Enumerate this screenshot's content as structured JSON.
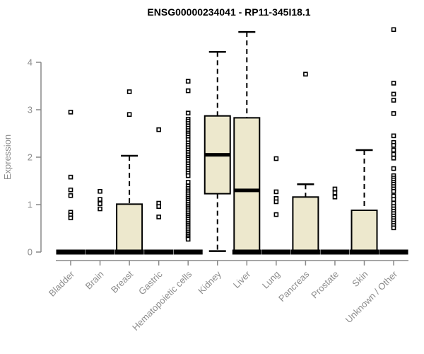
{
  "title": "ENSG00000234041 - RP11-345I18.1",
  "colors": {
    "box_fill": "#ede8cd",
    "box_stroke": "#000000",
    "median": "#000000",
    "axis_line": "#888888",
    "axis_text": "#8c8c8c",
    "title_text": "#000000",
    "background": "#ffffff"
  },
  "chart_data": {
    "type": "boxplot",
    "title": "ENSG00000234041 - RP11-345I18.1",
    "xlabel": "",
    "ylabel": "Expression",
    "ylim": [
      0,
      4.8
    ],
    "yticks": [
      0,
      1,
      2,
      3,
      4
    ],
    "grid": false,
    "legend": "none",
    "categories": [
      "Bladder",
      "Brain",
      "Breast",
      "Gastric",
      "Hematopoietic cells",
      "Kidney",
      "Liver",
      "Lung",
      "Pancreas",
      "Prostate",
      "Skin",
      "Unknown / Other"
    ],
    "series": [
      {
        "name": "Bladder",
        "q1": 0,
        "median": 0,
        "q3": 0,
        "whisker_low": 0,
        "whisker_high": 0,
        "zero_bar": true,
        "outliers": [
          2.95,
          1.58,
          1.31,
          1.19,
          0.84,
          0.78,
          0.72
        ]
      },
      {
        "name": "Brain",
        "q1": 0,
        "median": 0,
        "q3": 0,
        "whisker_low": 0,
        "whisker_high": 0,
        "zero_bar": true,
        "outliers": [
          1.28,
          1.11,
          1.02,
          0.91
        ]
      },
      {
        "name": "Breast",
        "q1": 0,
        "median": 0,
        "q3": 1.01,
        "whisker_low": 0,
        "whisker_high": 2.03,
        "zero_bar": true,
        "outliers": [
          3.38,
          2.9
        ]
      },
      {
        "name": "Gastric",
        "q1": 0,
        "median": 0,
        "q3": 0,
        "whisker_low": 0,
        "whisker_high": 0,
        "zero_bar": true,
        "outliers": [
          2.58,
          1.03,
          0.96,
          0.74
        ]
      },
      {
        "name": "Hematopoietic cells",
        "q1": 0,
        "median": 0,
        "q3": 0,
        "whisker_low": 0,
        "whisker_high": 0,
        "zero_bar": true,
        "outliers": [
          3.6,
          3.4,
          2.93,
          2.8,
          2.76,
          2.71,
          2.66,
          2.61,
          2.56,
          2.51,
          2.47,
          2.42,
          2.37,
          2.3,
          2.25,
          2.2,
          2.15,
          2.1,
          2.05,
          2.0,
          1.96,
          1.91,
          1.86,
          1.81,
          1.76,
          1.71,
          1.66,
          1.61,
          1.47,
          1.39,
          1.34,
          1.29,
          1.25,
          1.21,
          1.17,
          1.13,
          1.09,
          1.05,
          1.01,
          0.97,
          0.93,
          0.89,
          0.85,
          0.81,
          0.77,
          0.73,
          0.69,
          0.65,
          0.61,
          0.57,
          0.53,
          0.49,
          0.45,
          0.41,
          0.37,
          0.33,
          0.3,
          0.27
        ]
      },
      {
        "name": "Kidney",
        "q1": 1.23,
        "median": 2.05,
        "q3": 2.87,
        "whisker_low": 0.02,
        "whisker_high": 4.22,
        "zero_bar": false,
        "outliers": []
      },
      {
        "name": "Liver",
        "q1": 0.02,
        "median": 1.3,
        "q3": 2.83,
        "whisker_low": 0.02,
        "whisker_high": 4.64,
        "zero_bar": true,
        "outliers": []
      },
      {
        "name": "Lung",
        "q1": 0,
        "median": 0,
        "q3": 0,
        "whisker_low": 0,
        "whisker_high": 0,
        "zero_bar": true,
        "outliers": [
          1.97,
          1.27,
          1.13,
          1.06,
          0.79
        ]
      },
      {
        "name": "Pancreas",
        "q1": 0,
        "median": 0,
        "q3": 1.16,
        "whisker_low": 0,
        "whisker_high": 1.43,
        "zero_bar": true,
        "outliers": [
          3.75
        ]
      },
      {
        "name": "Prostate",
        "q1": 0,
        "median": 0,
        "q3": 0,
        "whisker_low": 0,
        "whisker_high": 0,
        "zero_bar": true,
        "outliers": [
          1.33,
          1.25,
          1.16
        ]
      },
      {
        "name": "Skin",
        "q1": 0,
        "median": 0,
        "q3": 0.88,
        "whisker_low": 0,
        "whisker_high": 2.15,
        "zero_bar": true,
        "outliers": []
      },
      {
        "name": "Unknown / Other",
        "q1": 0,
        "median": 0,
        "q3": 0,
        "whisker_low": 0,
        "whisker_high": 0,
        "zero_bar": true,
        "outliers": [
          4.69,
          3.56,
          3.33,
          3.2,
          2.92,
          2.45,
          2.31,
          2.25,
          2.15,
          2.06,
          1.98,
          1.76,
          1.61,
          1.56,
          1.52,
          1.47,
          1.43,
          1.38,
          1.33,
          1.28,
          1.18,
          1.11,
          1.03,
          0.96,
          0.91,
          0.86,
          0.81,
          0.76,
          0.71,
          0.66,
          0.61,
          0.56,
          0.51
        ]
      }
    ]
  }
}
